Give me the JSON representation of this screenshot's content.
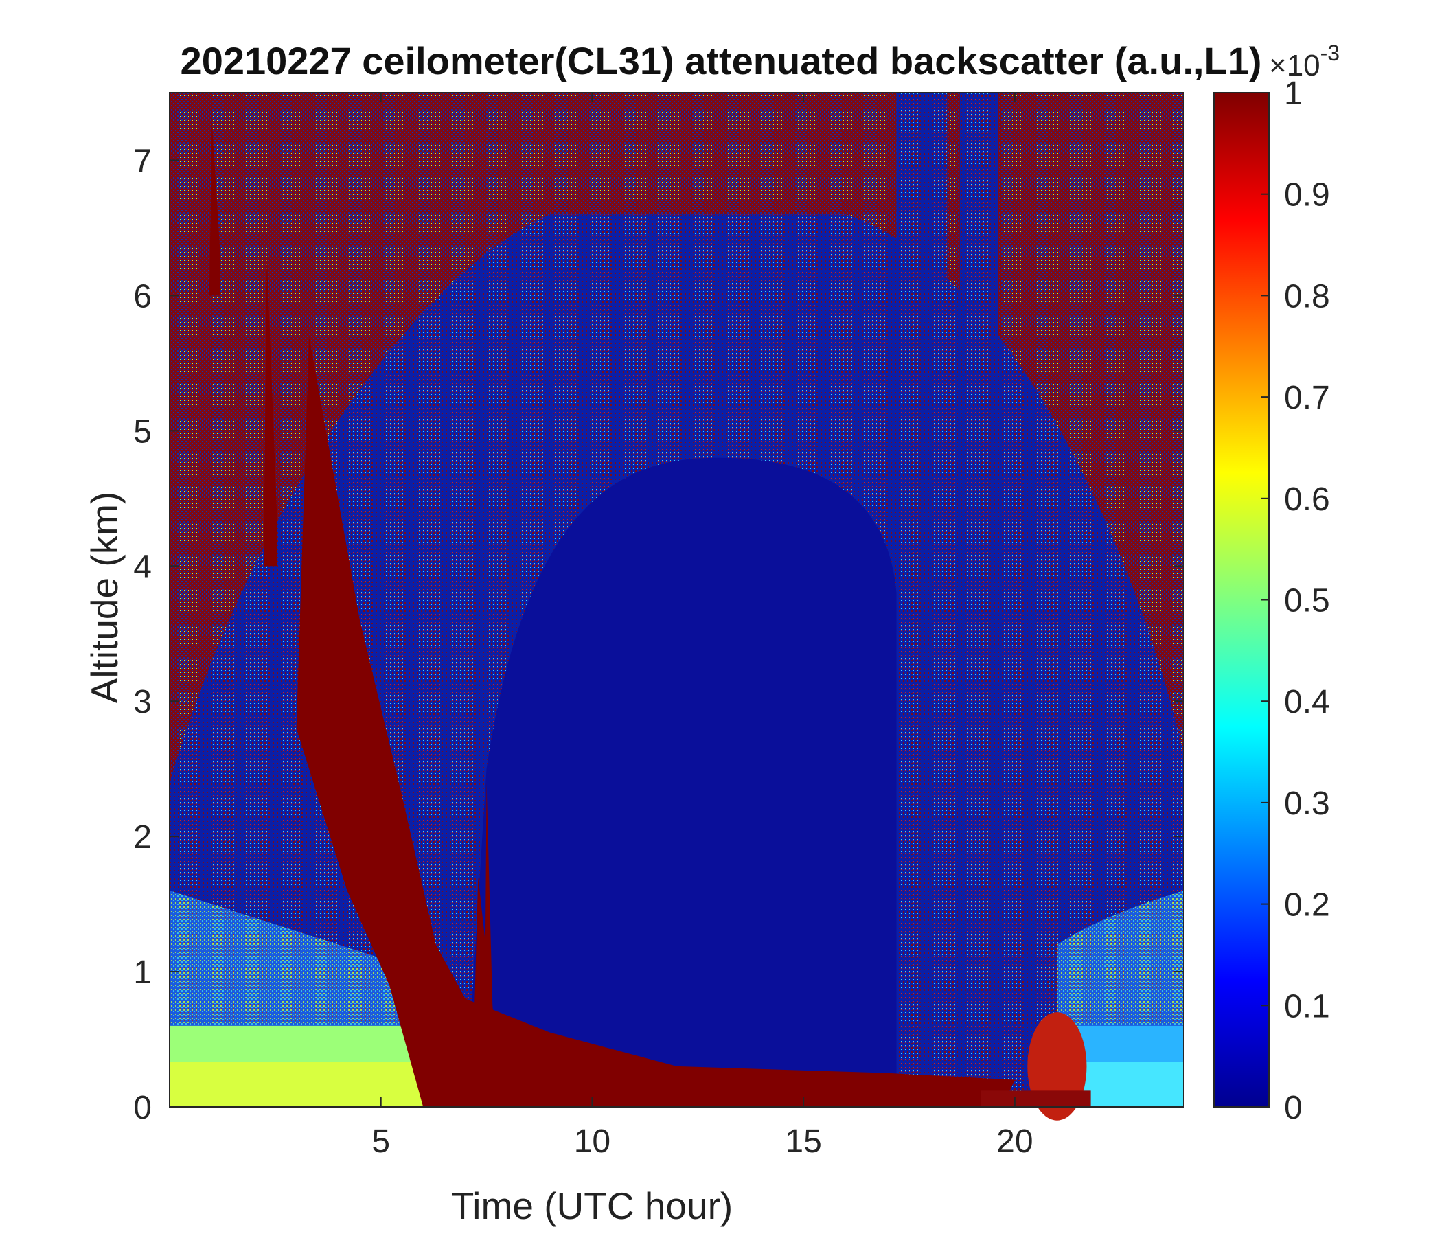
{
  "chart_data": {
    "type": "heatmap",
    "title": "20210227 ceilometer(CL31) attenuated backscatter (a.u.,L1)",
    "xlabel": "Time (UTC hour)",
    "ylabel": "Altitude (km)",
    "xlim": [
      0,
      24
    ],
    "ylim": [
      0,
      7.5
    ],
    "x_ticks": [
      5,
      10,
      15,
      20
    ],
    "x_tick_labels": [
      "5",
      "10",
      "15",
      "20"
    ],
    "y_ticks": [
      0,
      1,
      2,
      3,
      4,
      5,
      6,
      7
    ],
    "y_tick_labels": [
      "0",
      "1",
      "2",
      "3",
      "4",
      "5",
      "6",
      "7"
    ],
    "colorbar": {
      "colormap": "jet",
      "range": [
        0,
        1
      ],
      "exponent_label": "×10",
      "exponent_power": "-3",
      "ticks": [
        0,
        0.1,
        0.2,
        0.3,
        0.4,
        0.5,
        0.6,
        0.7,
        0.8,
        0.9,
        1
      ],
      "tick_labels": [
        "0",
        "0.1",
        "0.2",
        "0.3",
        "0.4",
        "0.5",
        "0.6",
        "0.7",
        "0.8",
        "0.9",
        "1"
      ]
    },
    "grid": false,
    "features": {
      "falling_cloud_layer": [
        {
          "time": 3.3,
          "top": 5.7,
          "bottom": 2.8
        },
        {
          "time": 4.5,
          "top": 3.6,
          "bottom": 1.6
        },
        {
          "time": 5.5,
          "top": 2.3,
          "bottom": 0.9
        },
        {
          "time": 6.3,
          "top": 1.2,
          "bottom": 0.0
        },
        {
          "time": 7.0,
          "top": 0.8,
          "bottom": 0.0
        },
        {
          "time": 9.0,
          "top": 0.55,
          "bottom": 0.0
        },
        {
          "time": 12.0,
          "top": 0.3,
          "bottom": 0.0
        },
        {
          "time": 17.0,
          "top": 0.25,
          "bottom": 0.0
        },
        {
          "time": 20.0,
          "top": 0.2,
          "bottom": 0.0
        }
      ],
      "low_cloud_burst": {
        "time": 21.0,
        "bottom": 0.1,
        "top": 0.5
      },
      "surface_aerosol_layer": [
        {
          "t0": 0,
          "t1": 6.3,
          "height": 0.6,
          "level": 0.55
        },
        {
          "t0": 21.5,
          "t1": 24,
          "height": 0.6,
          "level": 0.35
        }
      ],
      "noise_columns": [
        [
          17.2,
          18.4
        ],
        [
          18.7,
          19.6
        ]
      ],
      "clear_region": {
        "t0": 8.5,
        "t1": 17.0,
        "top": 4.8
      }
    }
  }
}
